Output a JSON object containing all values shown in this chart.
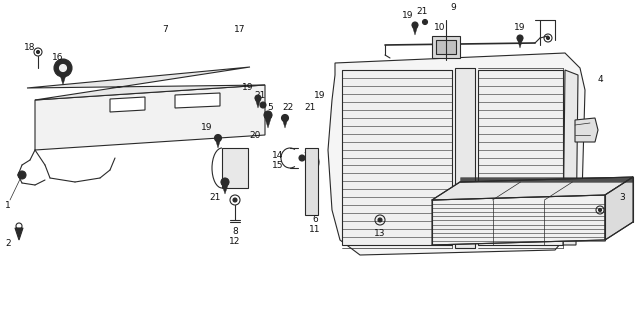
{
  "bg_color": "#ffffff",
  "line_color": "#2a2a2a",
  "label_color": "#111111",
  "figsize": [
    6.4,
    3.16
  ],
  "dpi": 100
}
